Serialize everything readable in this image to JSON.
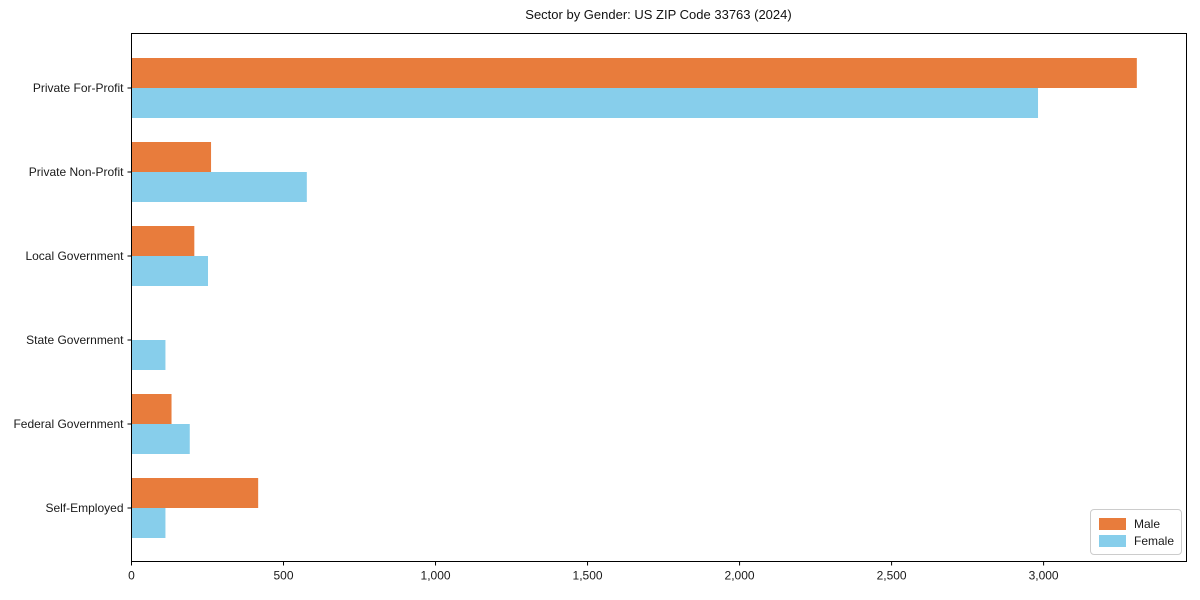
{
  "title": "Sector by Gender: US ZIP Code 33763 (2024)",
  "chart_data": {
    "type": "bar",
    "orientation": "horizontal",
    "title": "Sector by Gender: US ZIP Code 33763 (2024)",
    "xlabel": "",
    "ylabel": "",
    "categories": [
      "Private For-Profit",
      "Private Non-Profit",
      "Local Government",
      "State Government",
      "Federal Government",
      "Self-Employed"
    ],
    "series": [
      {
        "name": "Male",
        "color": "#e87c3c",
        "values": [
          3305,
          260,
          205,
          0,
          130,
          415
        ]
      },
      {
        "name": "Female",
        "color": "#87ceeb",
        "values": [
          2980,
          575,
          250,
          110,
          190,
          110
        ]
      }
    ],
    "xlim": [
      0,
      3470
    ],
    "xticks": [
      0,
      500,
      1000,
      1500,
      2000,
      2500,
      3000
    ],
    "xtick_labels": [
      "0",
      "500",
      "1,000",
      "1,500",
      "2,000",
      "2,500",
      "3,000"
    ],
    "grid": false,
    "legend_position": "lower right"
  }
}
